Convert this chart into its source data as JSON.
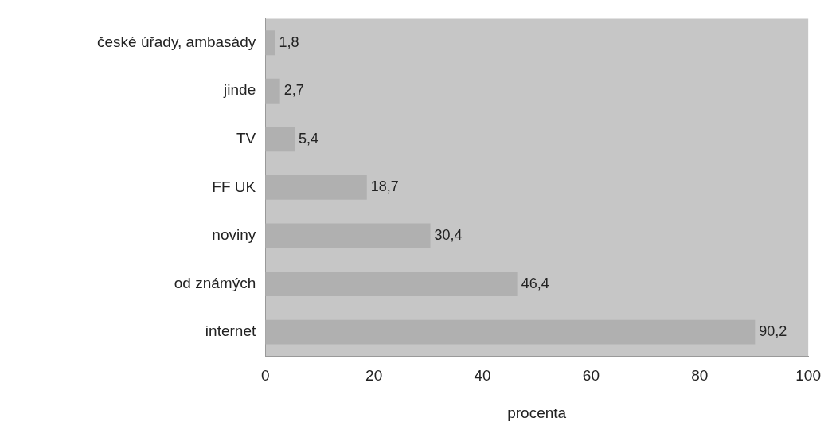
{
  "chart_data": {
    "type": "bar",
    "orientation": "horizontal",
    "xlabel": "procenta",
    "categories": [
      "české úřady, ambasády",
      "jinde",
      "TV",
      "FF UK",
      "noviny",
      "od známých",
      "internet"
    ],
    "values": [
      1.8,
      2.7,
      5.4,
      18.7,
      30.4,
      46.4,
      90.2
    ],
    "value_labels": [
      "1,8",
      "2,7",
      "5,4",
      "18,7",
      "30,4",
      "46,4",
      "90,2"
    ],
    "color": "#b0b0b0",
    "xlim": [
      0,
      100
    ],
    "xticks": [
      0,
      20,
      40,
      60,
      80,
      100
    ],
    "grid": false,
    "legend": false
  }
}
